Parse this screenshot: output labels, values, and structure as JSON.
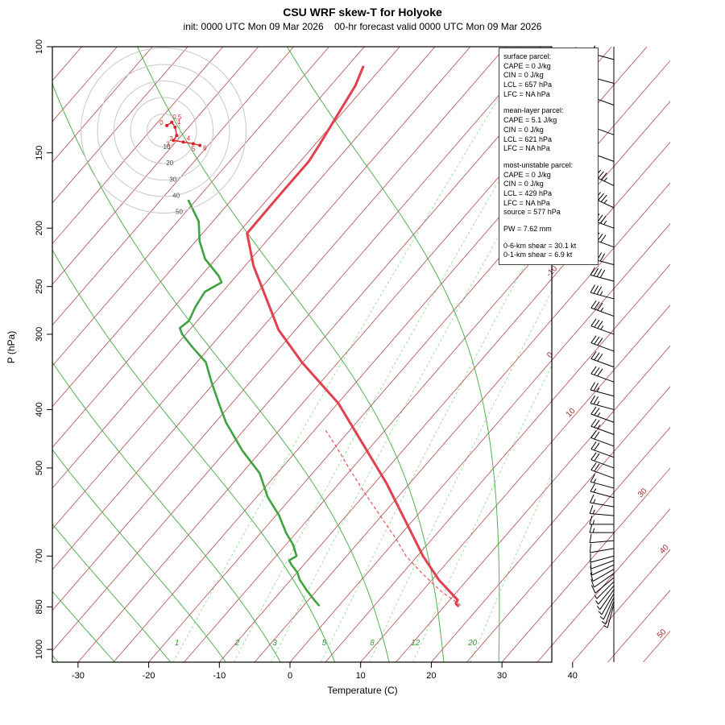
{
  "title": "CSU WRF skew-T for Holyoke",
  "subtitle": "init: 0000 UTC Mon 09 Mar 2026    00-hr forecast valid 0000 UTC Mon 09 Mar 2026",
  "axes": {
    "xlabel": "Temperature (C)",
    "ylabel": "P (hPa)",
    "pressure_ticks": [
      100,
      150,
      200,
      250,
      300,
      400,
      500,
      700,
      850,
      1000
    ],
    "temp_ticks": [
      -30,
      -20,
      -10,
      0,
      10,
      20,
      30,
      40
    ]
  },
  "info_box": {
    "sections": [
      {
        "lines": [
          "surface parcel:",
          "CAPE = 0 J/kg",
          "CIN = 0 J/kg",
          "LCL = 657 hPa",
          "LFC = NA hPa"
        ]
      },
      {
        "lines": [
          "mean-layer parcel:",
          "CAPE = 5.1 J/kg",
          "CIN = 0 J/kg",
          "LCL = 621 hPa",
          "LFC = NA hPa"
        ]
      },
      {
        "lines": [
          "most-unstable parcel:",
          "CAPE = 0 J/kg",
          "CIN = 0 J/kg",
          "LCL = 429 hPa",
          "LFC = NA hPa",
          "source = 577 hPa"
        ]
      },
      {
        "lines": [
          "PW =  7.62 mm"
        ]
      },
      {
        "lines": [
          "0-6-km shear = 30.1 kt",
          "0-1-km shear = 6.9 kt"
        ]
      }
    ]
  },
  "colors": {
    "isotherm": "#A52A2A",
    "isotherm_label": "#A52A2A",
    "mixing_ratio": "#7fd87f",
    "mixing_label": "#2f9e2f",
    "moist_adiabat": "#3faa3f",
    "temp_profile": "#e2404e",
    "dew_profile": "#3fa33f",
    "parcel_trace": "#e2404e",
    "hodo_trace": "#dd2222",
    "barb": "#000000"
  },
  "chart_data": {
    "type": "skewt",
    "pressure_range_hpa": [
      100,
      1050
    ],
    "isotherms_c": {
      "min": -120,
      "max": 50,
      "step": 5
    },
    "isotherm_right_labels": [
      {
        "t": -10,
        "p": 239
      },
      {
        "t": 0,
        "p": 329
      },
      {
        "t": 10,
        "p": 410
      },
      {
        "t": 30,
        "p": 557
      },
      {
        "t": 40,
        "p": 691
      },
      {
        "t": 50,
        "p": 954
      }
    ],
    "mixing_ratio_g_kg": [
      1,
      2,
      3,
      5,
      8,
      12,
      20
    ],
    "moist_adiabats_c": {
      "min": -60,
      "max": 36,
      "step": 8
    },
    "temperature_profile": [
      [
        108,
        -62.7
      ],
      [
        116,
        -61.5
      ],
      [
        133,
        -60.2
      ],
      [
        146,
        -59.3
      ],
      [
        155,
        -58.8
      ],
      [
        175,
        -58.8
      ],
      [
        204,
        -58.7
      ],
      [
        231,
        -53.8
      ],
      [
        261,
        -48.1
      ],
      [
        295,
        -42.4
      ],
      [
        334,
        -35.1
      ],
      [
        390,
        -25.0
      ],
      [
        455,
        -16.6
      ],
      [
        530,
        -8.3
      ],
      [
        618,
        -0.5
      ],
      [
        700,
        5.8
      ],
      [
        767,
        11.0
      ],
      [
        828,
        16.1
      ],
      [
        840,
        16.3
      ],
      [
        847,
        16.9
      ]
    ],
    "dewpoint_profile": [
      [
        180,
        -71.0
      ],
      [
        195,
        -67.0
      ],
      [
        210,
        -64.5
      ],
      [
        225,
        -61.5
      ],
      [
        240,
        -57.5
      ],
      [
        246,
        -56.3
      ],
      [
        255,
        -57.5
      ],
      [
        270,
        -57.0
      ],
      [
        285,
        -56.2
      ],
      [
        293,
        -56.6
      ],
      [
        300,
        -55.5
      ],
      [
        315,
        -52.5
      ],
      [
        334,
        -48.7
      ],
      [
        360,
        -45.5
      ],
      [
        390,
        -41.9
      ],
      [
        420,
        -38.5
      ],
      [
        468,
        -32.7
      ],
      [
        510,
        -27.5
      ],
      [
        559,
        -23.4
      ],
      [
        600,
        -19.5
      ],
      [
        641,
        -16.4
      ],
      [
        670,
        -14.0
      ],
      [
        700,
        -12.1
      ],
      [
        712,
        -12.6
      ],
      [
        723,
        -11.8
      ],
      [
        745,
        -10.0
      ],
      [
        767,
        -8.7
      ],
      [
        800,
        -6.3
      ],
      [
        828,
        -4.2
      ],
      [
        845,
        -2.9
      ]
    ],
    "parcel_trace": [
      [
        845,
        17.2
      ],
      [
        800,
        12.6
      ],
      [
        750,
        8.0
      ],
      [
        700,
        3.4
      ],
      [
        657,
        0.0
      ],
      [
        600,
        -5.2
      ],
      [
        550,
        -10.2
      ],
      [
        500,
        -15.5
      ],
      [
        460,
        -20.0
      ],
      [
        430,
        -23.8
      ]
    ],
    "wind_barbs": [
      [
        105,
        285,
        55
      ],
      [
        115,
        285,
        55
      ],
      [
        125,
        290,
        50
      ],
      [
        140,
        290,
        50
      ],
      [
        155,
        290,
        50
      ],
      [
        170,
        295,
        45
      ],
      [
        185,
        295,
        45
      ],
      [
        200,
        290,
        45
      ],
      [
        215,
        290,
        40
      ],
      [
        230,
        285,
        40
      ],
      [
        245,
        285,
        40
      ],
      [
        262,
        285,
        35
      ],
      [
        280,
        290,
        35
      ],
      [
        300,
        290,
        35
      ],
      [
        320,
        290,
        30
      ],
      [
        340,
        290,
        30
      ],
      [
        360,
        290,
        30
      ],
      [
        380,
        285,
        25
      ],
      [
        400,
        285,
        25
      ],
      [
        420,
        290,
        25
      ],
      [
        440,
        290,
        25
      ],
      [
        460,
        290,
        20
      ],
      [
        480,
        290,
        20
      ],
      [
        500,
        290,
        20
      ],
      [
        520,
        290,
        20
      ],
      [
        540,
        285,
        15
      ],
      [
        560,
        285,
        15
      ],
      [
        580,
        280,
        15
      ],
      [
        600,
        275,
        15
      ],
      [
        620,
        270,
        15
      ],
      [
        640,
        270,
        15
      ],
      [
        660,
        265,
        10
      ],
      [
        680,
        260,
        10
      ],
      [
        700,
        255,
        10
      ],
      [
        712,
        250,
        10
      ],
      [
        724,
        245,
        10
      ],
      [
        736,
        240,
        10
      ],
      [
        748,
        235,
        10
      ],
      [
        760,
        230,
        10
      ],
      [
        772,
        225,
        5
      ],
      [
        784,
        220,
        5
      ],
      [
        796,
        215,
        5
      ],
      [
        808,
        210,
        5
      ],
      [
        820,
        205,
        5
      ],
      [
        832,
        200,
        5
      ],
      [
        842,
        195,
        5
      ]
    ],
    "hodograph": {
      "rings_kt": [
        10,
        20,
        30,
        40,
        50
      ],
      "ring_labels": [
        "10",
        "20",
        "30",
        "40",
        "50"
      ],
      "trace": [
        {
          "label": "0",
          "u": 2,
          "v": 3
        },
        {
          "label": "0.5",
          "u": 5,
          "v": 5
        },
        {
          "label": "1",
          "u": 7,
          "v": 2
        },
        {
          "label": "2",
          "u": 8,
          "v": -3
        },
        {
          "label": "3",
          "u": 6,
          "v": -6
        },
        {
          "label": "4",
          "u": 12,
          "v": -7
        },
        {
          "label": "5",
          "u": 18,
          "v": -8
        },
        {
          "label": "6",
          "u": 22,
          "v": -9
        }
      ]
    }
  }
}
